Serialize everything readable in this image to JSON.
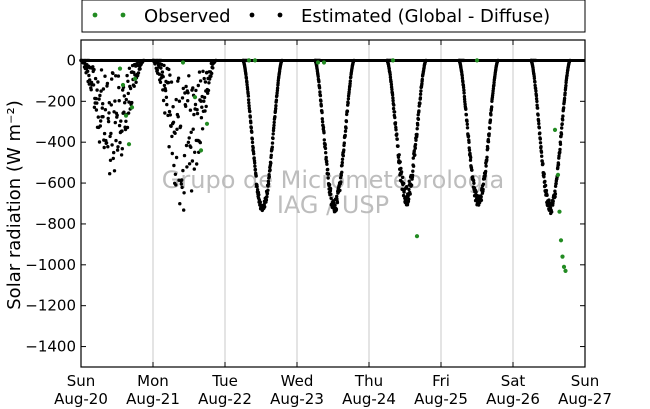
{
  "chart_data": {
    "type": "scatter",
    "ylabel": "Solar radiation (W m⁻²)",
    "xlabel": "",
    "ylim": [
      -1500,
      100
    ],
    "xlim": [
      "2017-08-20",
      "2017-08-27"
    ],
    "yticks": [
      0,
      -200,
      -400,
      -600,
      -800,
      -1000,
      -1200,
      -1400
    ],
    "xticks": [
      {
        "day": "Sun",
        "date": "Aug-20"
      },
      {
        "day": "Mon",
        "date": "Aug-21"
      },
      {
        "day": "Tue",
        "date": "Aug-22"
      },
      {
        "day": "Wed",
        "date": "Aug-23"
      },
      {
        "day": "Thu",
        "date": "Aug-24"
      },
      {
        "day": "Fri",
        "date": "Aug-25"
      },
      {
        "day": "Sat",
        "date": "Aug-26"
      },
      {
        "day": "Sun",
        "date": "Aug-27"
      }
    ],
    "grid": "vertical",
    "legend": {
      "placement": "top",
      "entries": [
        "Observed",
        "Estimated (Global - Diffuse)"
      ]
    },
    "watermark": [
      "Grupo de Micrometeorologia",
      "IAG / USP"
    ],
    "series": [
      {
        "name": "Observed",
        "color": "#228B22",
        "points": [
          {
            "x": "2017-08-20 13:00",
            "y": -40
          },
          {
            "x": "2017-08-20 14:00",
            "y": -120
          },
          {
            "x": "2017-08-20 15:00",
            "y": -270
          },
          {
            "x": "2017-08-20 16:00",
            "y": -410
          },
          {
            "x": "2017-08-20 17:00",
            "y": -230
          },
          {
            "x": "2017-08-20 18:00",
            "y": -90
          },
          {
            "x": "2017-08-21 10:00",
            "y": -10
          },
          {
            "x": "2017-08-21 14:00",
            "y": -180
          },
          {
            "x": "2017-08-21 16:00",
            "y": -440
          },
          {
            "x": "2017-08-21 18:00",
            "y": -310
          },
          {
            "x": "2017-08-22 08:00",
            "y": 0
          },
          {
            "x": "2017-08-22 10:00",
            "y": 0
          },
          {
            "x": "2017-08-23 07:00",
            "y": -10
          },
          {
            "x": "2017-08-23 09:00",
            "y": -10
          },
          {
            "x": "2017-08-24 08:00",
            "y": 0
          },
          {
            "x": "2017-08-24 16:00",
            "y": -860
          },
          {
            "x": "2017-08-25 12:00",
            "y": 0
          },
          {
            "x": "2017-08-26 14:00",
            "y": -340
          },
          {
            "x": "2017-08-26 15:00",
            "y": -560
          },
          {
            "x": "2017-08-26 15:30",
            "y": -740
          },
          {
            "x": "2017-08-26 16:00",
            "y": -880
          },
          {
            "x": "2017-08-26 16:30",
            "y": -960
          },
          {
            "x": "2017-08-26 17:00",
            "y": -1010
          },
          {
            "x": "2017-08-26 17:30",
            "y": -1030
          }
        ]
      },
      {
        "name": "Estimated (Global - Diffuse)",
        "color": "#000000",
        "days": [
          {
            "start": "2017-08-20 00:00",
            "end": "2017-08-20 21:00",
            "peak": -540,
            "noise": 0.85
          },
          {
            "start": "2017-08-21 00:00",
            "end": "2017-08-21 21:00",
            "peak": -740,
            "noise": 0.8
          },
          {
            "start": "2017-08-22 06:00",
            "end": "2017-08-22 19:00",
            "peak": -720,
            "noise": 0.06
          },
          {
            "start": "2017-08-23 06:00",
            "end": "2017-08-23 19:00",
            "peak": -710,
            "noise": 0.1
          },
          {
            "start": "2017-08-24 06:00",
            "end": "2017-08-24 19:00",
            "peak": -660,
            "noise": 0.15
          },
          {
            "start": "2017-08-25 06:00",
            "end": "2017-08-25 19:00",
            "peak": -690,
            "noise": 0.08
          },
          {
            "start": "2017-08-26 06:00",
            "end": "2017-08-26 19:00",
            "peak": -720,
            "noise": 0.08
          }
        ]
      }
    ]
  }
}
